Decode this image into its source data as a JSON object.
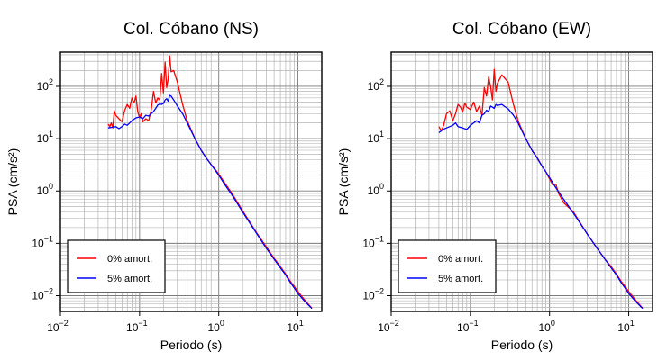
{
  "chart_data": [
    {
      "type": "line",
      "title": "Col. Cóbano (NS)",
      "xlabel": "Periodo (s)",
      "ylabel": "PSA (cm/s²)",
      "xscale": "log",
      "yscale": "log",
      "xlim": [
        0.01,
        20
      ],
      "ylim": [
        0.005,
        450
      ],
      "grid": true,
      "legend_position": "bottom-left",
      "x_ticks": [
        {
          "value": 0.01,
          "base": "10",
          "exp": "−2"
        },
        {
          "value": 0.1,
          "base": "10",
          "exp": "−1"
        },
        {
          "value": 1,
          "base": "10",
          "exp": "0"
        },
        {
          "value": 10,
          "base": "10",
          "exp": "1"
        }
      ],
      "y_ticks": [
        {
          "value": 0.01,
          "base": "10",
          "exp": "−2"
        },
        {
          "value": 0.1,
          "base": "10",
          "exp": "−1"
        },
        {
          "value": 1,
          "base": "10",
          "exp": "0"
        },
        {
          "value": 10,
          "base": "10",
          "exp": "1"
        },
        {
          "value": 100,
          "base": "10",
          "exp": "2"
        }
      ],
      "series": [
        {
          "name": "0% amort.",
          "color": "#ff0000",
          "x": [
            0.04,
            0.042,
            0.044,
            0.046,
            0.048,
            0.05,
            0.055,
            0.06,
            0.065,
            0.07,
            0.075,
            0.08,
            0.085,
            0.09,
            0.095,
            0.1,
            0.105,
            0.11,
            0.12,
            0.13,
            0.14,
            0.15,
            0.16,
            0.17,
            0.18,
            0.19,
            0.2,
            0.21,
            0.22,
            0.23,
            0.24,
            0.25,
            0.27,
            0.3,
            0.35,
            0.4,
            0.5,
            0.6,
            0.7,
            0.8,
            0.9,
            1,
            1.2,
            1.5,
            2,
            3,
            4,
            5,
            6,
            7,
            8,
            9,
            10,
            12,
            14,
            15
          ],
          "y": [
            19,
            17,
            20,
            16,
            34,
            28,
            24,
            21,
            35,
            45,
            38,
            60,
            48,
            65,
            32,
            25,
            30,
            21,
            24,
            22,
            35,
            80,
            48,
            60,
            55,
            175,
            75,
            290,
            95,
            140,
            380,
            190,
            200,
            120,
            45,
            22,
            10,
            6,
            4.2,
            3.2,
            2.6,
            2.1,
            1.4,
            0.85,
            0.42,
            0.16,
            0.085,
            0.052,
            0.036,
            0.026,
            0.019,
            0.015,
            0.012,
            0.0085,
            0.0065,
            0.0058
          ]
        },
        {
          "name": "5% amort.",
          "color": "#0000ff",
          "x": [
            0.04,
            0.045,
            0.05,
            0.055,
            0.06,
            0.065,
            0.07,
            0.08,
            0.09,
            0.1,
            0.11,
            0.12,
            0.13,
            0.14,
            0.15,
            0.16,
            0.17,
            0.18,
            0.19,
            0.2,
            0.21,
            0.22,
            0.23,
            0.24,
            0.25,
            0.27,
            0.3,
            0.35,
            0.4,
            0.5,
            0.6,
            0.7,
            0.8,
            0.9,
            1,
            1.2,
            1.5,
            2,
            3,
            4,
            5,
            6,
            7,
            8,
            9,
            10,
            12,
            14,
            15
          ],
          "y": [
            16,
            16.5,
            17,
            15.5,
            17,
            19,
            18,
            22,
            25,
            26,
            24,
            28,
            27,
            30,
            33,
            38,
            44,
            46,
            45,
            47,
            55,
            58,
            52,
            67,
            65,
            55,
            42,
            30,
            20,
            10,
            6,
            4.2,
            3.2,
            2.5,
            2,
            1.3,
            0.8,
            0.4,
            0.155,
            0.08,
            0.05,
            0.034,
            0.025,
            0.018,
            0.014,
            0.011,
            0.008,
            0.0063,
            0.0057
          ]
        }
      ]
    },
    {
      "type": "line",
      "title": "Col. Cóbano (EW)",
      "xlabel": "Periodo (s)",
      "ylabel": "PSA (cm/s²)",
      "xscale": "log",
      "yscale": "log",
      "xlim": [
        0.01,
        20
      ],
      "ylim": [
        0.005,
        450
      ],
      "grid": true,
      "legend_position": "bottom-left",
      "x_ticks": [
        {
          "value": 0.01,
          "base": "10",
          "exp": "−2"
        },
        {
          "value": 0.1,
          "base": "10",
          "exp": "−1"
        },
        {
          "value": 1,
          "base": "10",
          "exp": "0"
        },
        {
          "value": 10,
          "base": "10",
          "exp": "1"
        }
      ],
      "y_ticks": [
        {
          "value": 0.01,
          "base": "10",
          "exp": "−2"
        },
        {
          "value": 0.1,
          "base": "10",
          "exp": "−1"
        },
        {
          "value": 1,
          "base": "10",
          "exp": "0"
        },
        {
          "value": 10,
          "base": "10",
          "exp": "1"
        },
        {
          "value": 100,
          "base": "10",
          "exp": "2"
        }
      ],
      "series": [
        {
          "name": "0% amort.",
          "color": "#ff0000",
          "x": [
            0.04,
            0.043,
            0.046,
            0.05,
            0.055,
            0.06,
            0.065,
            0.07,
            0.075,
            0.08,
            0.085,
            0.09,
            0.1,
            0.11,
            0.12,
            0.13,
            0.14,
            0.15,
            0.16,
            0.17,
            0.18,
            0.19,
            0.2,
            0.21,
            0.22,
            0.25,
            0.3,
            0.35,
            0.4,
            0.5,
            0.6,
            0.7,
            0.8,
            0.9,
            1,
            1.1,
            1.2,
            1.3,
            1.5,
            2,
            3,
            4,
            5,
            6,
            7,
            8,
            9,
            10,
            12,
            14,
            15
          ],
          "y": [
            17,
            14,
            18,
            30,
            34,
            22,
            30,
            45,
            40,
            32,
            48,
            40,
            36,
            50,
            33,
            42,
            28,
            95,
            65,
            150,
            100,
            55,
            210,
            80,
            115,
            165,
            120,
            45,
            22,
            10,
            6,
            4.3,
            3,
            2.3,
            1.7,
            1.3,
            1.35,
            0.9,
            0.6,
            0.4,
            0.15,
            0.08,
            0.05,
            0.036,
            0.026,
            0.019,
            0.015,
            0.012,
            0.0085,
            0.0065,
            0.0058
          ]
        },
        {
          "name": "5% amort.",
          "color": "#0000ff",
          "x": [
            0.04,
            0.045,
            0.05,
            0.055,
            0.06,
            0.065,
            0.07,
            0.08,
            0.09,
            0.1,
            0.11,
            0.12,
            0.13,
            0.14,
            0.15,
            0.16,
            0.17,
            0.18,
            0.19,
            0.2,
            0.21,
            0.22,
            0.25,
            0.3,
            0.35,
            0.4,
            0.5,
            0.6,
            0.7,
            0.8,
            0.9,
            1,
            1.2,
            1.5,
            2,
            3,
            4,
            5,
            6,
            7,
            8,
            9,
            10,
            12,
            14,
            15
          ],
          "y": [
            13,
            15,
            16,
            17,
            18,
            20,
            17,
            16,
            15,
            18,
            20,
            22,
            20,
            28,
            30,
            35,
            33,
            42,
            40,
            38,
            45,
            43,
            45,
            37,
            28,
            20,
            10,
            6,
            4.2,
            3,
            2.3,
            1.8,
            1.15,
            0.7,
            0.38,
            0.15,
            0.08,
            0.05,
            0.034,
            0.025,
            0.018,
            0.014,
            0.011,
            0.008,
            0.0063,
            0.0057
          ]
        }
      ]
    }
  ]
}
